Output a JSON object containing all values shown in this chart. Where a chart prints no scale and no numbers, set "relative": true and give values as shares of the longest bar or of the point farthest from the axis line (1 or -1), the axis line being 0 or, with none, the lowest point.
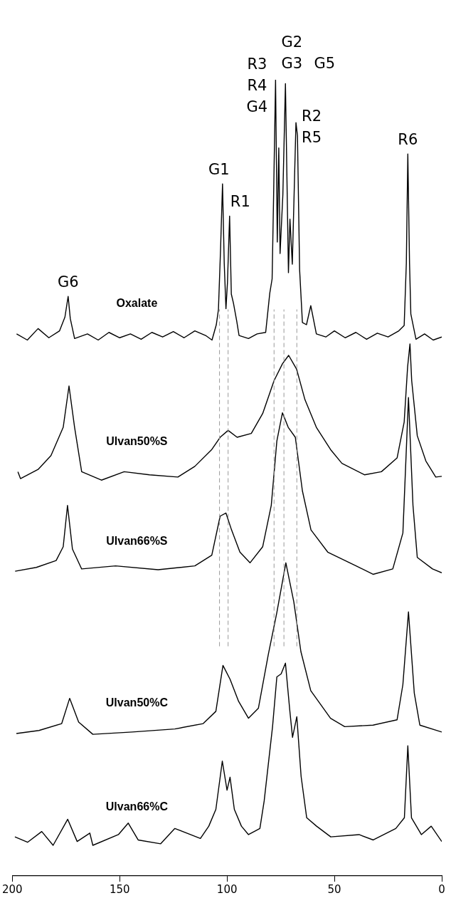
{
  "chart_data": {
    "type": "line",
    "relative": true,
    "xlim": [
      200,
      0
    ],
    "xticks": [
      200,
      150,
      100,
      50,
      0
    ],
    "grid": false,
    "legend": false,
    "tick_labels": "x",
    "marker": "none",
    "line_style": "solid",
    "series": [
      {
        "name": "Oxalate",
        "color": "#000000",
        "x": [
          198,
          193,
          188,
          183,
          178,
          175.5,
          174,
          173,
          171,
          165,
          160,
          155,
          150,
          145,
          140,
          135,
          130,
          125,
          120,
          115,
          110,
          107,
          105,
          104,
          103,
          102.1,
          101.3,
          100.5,
          99.8,
          98.8,
          98,
          97,
          95.5,
          94.4,
          90,
          86,
          82,
          80.1,
          79,
          78.3,
          77.4,
          76.6,
          75.9,
          75.3,
          74,
          72.8,
          71.4,
          70.7,
          69.6,
          67.9,
          67.2,
          66.2,
          64.9,
          63,
          61,
          58.4,
          54,
          50,
          45,
          40,
          35,
          30,
          25,
          20,
          17.5,
          16.5,
          15.8,
          15,
          14.4,
          12,
          8,
          4,
          0
        ],
        "values": [
          0.668,
          0.66,
          0.675,
          0.663,
          0.672,
          0.69,
          0.717,
          0.688,
          0.662,
          0.668,
          0.66,
          0.67,
          0.663,
          0.668,
          0.661,
          0.67,
          0.664,
          0.671,
          0.663,
          0.672,
          0.666,
          0.66,
          0.68,
          0.7,
          0.78,
          0.864,
          0.76,
          0.701,
          0.735,
          0.822,
          0.72,
          0.708,
          0.685,
          0.666,
          0.662,
          0.668,
          0.67,
          0.721,
          0.74,
          0.85,
          1.0,
          0.788,
          0.911,
          0.773,
          0.85,
          0.995,
          0.748,
          0.818,
          0.759,
          0.944,
          0.927,
          0.752,
          0.683,
          0.68,
          0.705,
          0.668,
          0.664,
          0.672,
          0.663,
          0.67,
          0.661,
          0.669,
          0.664,
          0.672,
          0.679,
          0.76,
          0.903,
          0.76,
          0.694,
          0.661,
          0.668,
          0.66,
          0.664
        ]
      },
      {
        "name": "Ulvan50%S",
        "color": "#000000",
        "x": [
          197.4,
          196.2,
          188,
          182,
          176.3,
          173.6,
          171,
          167.7,
          158.5,
          147.9,
          136.1,
          122.9,
          115,
          107.1,
          103.2,
          99.5,
          95.3,
          88.7,
          83.4,
          78.1,
          74.2,
          71.3,
          67.6,
          63.7,
          58.4,
          51.8,
          46.5,
          36,
          28.1,
          20.8,
          17.5,
          15.9,
          14.8,
          14,
          11.4,
          7.4,
          2.8,
          0
        ],
        "values": [
          0.488,
          0.479,
          0.491,
          0.509,
          0.546,
          0.6,
          0.546,
          0.488,
          0.477,
          0.488,
          0.484,
          0.481,
          0.495,
          0.517,
          0.533,
          0.542,
          0.533,
          0.538,
          0.564,
          0.607,
          0.629,
          0.64,
          0.622,
          0.582,
          0.546,
          0.517,
          0.499,
          0.484,
          0.488,
          0.506,
          0.553,
          0.625,
          0.655,
          0.607,
          0.535,
          0.502,
          0.481,
          0.482
        ]
      },
      {
        "name": "Ulvan66%S",
        "color": "#000000",
        "x": [
          198.7,
          188.8,
          179.6,
          176.3,
          174.3,
          172,
          167.7,
          151.9,
          132.1,
          115,
          107.1,
          103.2,
          100.5,
          97.9,
          94,
          89.3,
          83.4,
          79.4,
          76.8,
          74.2,
          71.5,
          68.2,
          64.9,
          60.9,
          53.1,
          39.9,
          32,
          22.8,
          18.1,
          15.5,
          13.4,
          11.4,
          4.3,
          0
        ],
        "values": [
          0.358,
          0.363,
          0.372,
          0.39,
          0.444,
          0.387,
          0.361,
          0.365,
          0.36,
          0.365,
          0.379,
          0.43,
          0.434,
          0.412,
          0.383,
          0.369,
          0.39,
          0.444,
          0.528,
          0.565,
          0.546,
          0.533,
          0.463,
          0.412,
          0.383,
          0.365,
          0.354,
          0.361,
          0.408,
          0.585,
          0.444,
          0.376,
          0.361,
          0.356
        ]
      },
      {
        "name": "Ulvan50%C",
        "color": "#000000",
        "x": [
          198.1,
          187.6,
          177,
          173.3,
          169.1,
          162.5,
          144.1,
          124.3,
          111.1,
          105.2,
          101.9,
          98.6,
          94.6,
          90,
          85.4,
          80.8,
          76.8,
          72.6,
          68.9,
          65.6,
          61,
          51.8,
          45.2,
          32,
          20.8,
          18.1,
          15.5,
          12.8,
          10.2,
          0
        ],
        "values": [
          0.146,
          0.15,
          0.159,
          0.192,
          0.161,
          0.145,
          0.148,
          0.152,
          0.159,
          0.175,
          0.235,
          0.217,
          0.188,
          0.166,
          0.179,
          0.249,
          0.304,
          0.369,
          0.318,
          0.253,
          0.202,
          0.166,
          0.155,
          0.157,
          0.164,
          0.21,
          0.305,
          0.199,
          0.157,
          0.148
        ]
      },
      {
        "name": "Ulvan66%C",
        "color": "#000000",
        "x": [
          198.8,
          192.9,
          186.3,
          181,
          174.2,
          169.8,
          163.9,
          162.5,
          150.6,
          146,
          141.4,
          130.9,
          124.3,
          112.4,
          108.5,
          105.2,
          102.2,
          100,
          98.6,
          96.6,
          93.3,
          90,
          84.7,
          82.7,
          78.8,
          76.8,
          74.8,
          72.8,
          70.8,
          69.5,
          67.5,
          65.5,
          62.9,
          58.3,
          51.7,
          38.5,
          31.9,
          21.4,
          17.4,
          15.8,
          14.1,
          9.5,
          4.9,
          0
        ],
        "values": [
          0.011,
          0.004,
          0.018,
          0.0,
          0.034,
          0.005,
          0.016,
          0.0,
          0.014,
          0.029,
          0.007,
          0.002,
          0.022,
          0.009,
          0.025,
          0.047,
          0.11,
          0.072,
          0.089,
          0.047,
          0.025,
          0.014,
          0.022,
          0.058,
          0.155,
          0.22,
          0.224,
          0.238,
          0.177,
          0.141,
          0.168,
          0.09,
          0.036,
          0.025,
          0.011,
          0.014,
          0.007,
          0.022,
          0.036,
          0.13,
          0.036,
          0.014,
          0.025,
          0.005
        ]
      }
    ],
    "ref_lines": [
      {
        "axis": "x",
        "value": 103.5,
        "color": "#999999",
        "line_style": "dashed"
      },
      {
        "axis": "x",
        "value": 99.5,
        "color": "#999999",
        "line_style": "dashed"
      },
      {
        "axis": "x",
        "value": 78.1,
        "color": "#999999",
        "line_style": "dashed"
      },
      {
        "axis": "x",
        "value": 73.5,
        "color": "#999999",
        "line_style": "dashed"
      },
      {
        "axis": "x",
        "value": 67.5,
        "color": "#999999",
        "line_style": "dashed"
      }
    ],
    "annotations": [
      {
        "text": "G6",
        "x": 174,
        "y": 0.717
      },
      {
        "text": "G1",
        "x": 102.1,
        "y": 0.864
      },
      {
        "text": "R1",
        "x": 98.8,
        "y": 0.822
      },
      {
        "text": "R3\nR4\nG4",
        "x": 77.4,
        "y": 1.0
      },
      {
        "text": "G2\nG3",
        "x": 72.8,
        "y": 0.995
      },
      "G5",
      {
        "text": "R2\nR5",
        "x": 67.9,
        "y": 0.944
      },
      {
        "text": "R6",
        "x": 15.8,
        "y": 0.903
      }
    ]
  }
}
